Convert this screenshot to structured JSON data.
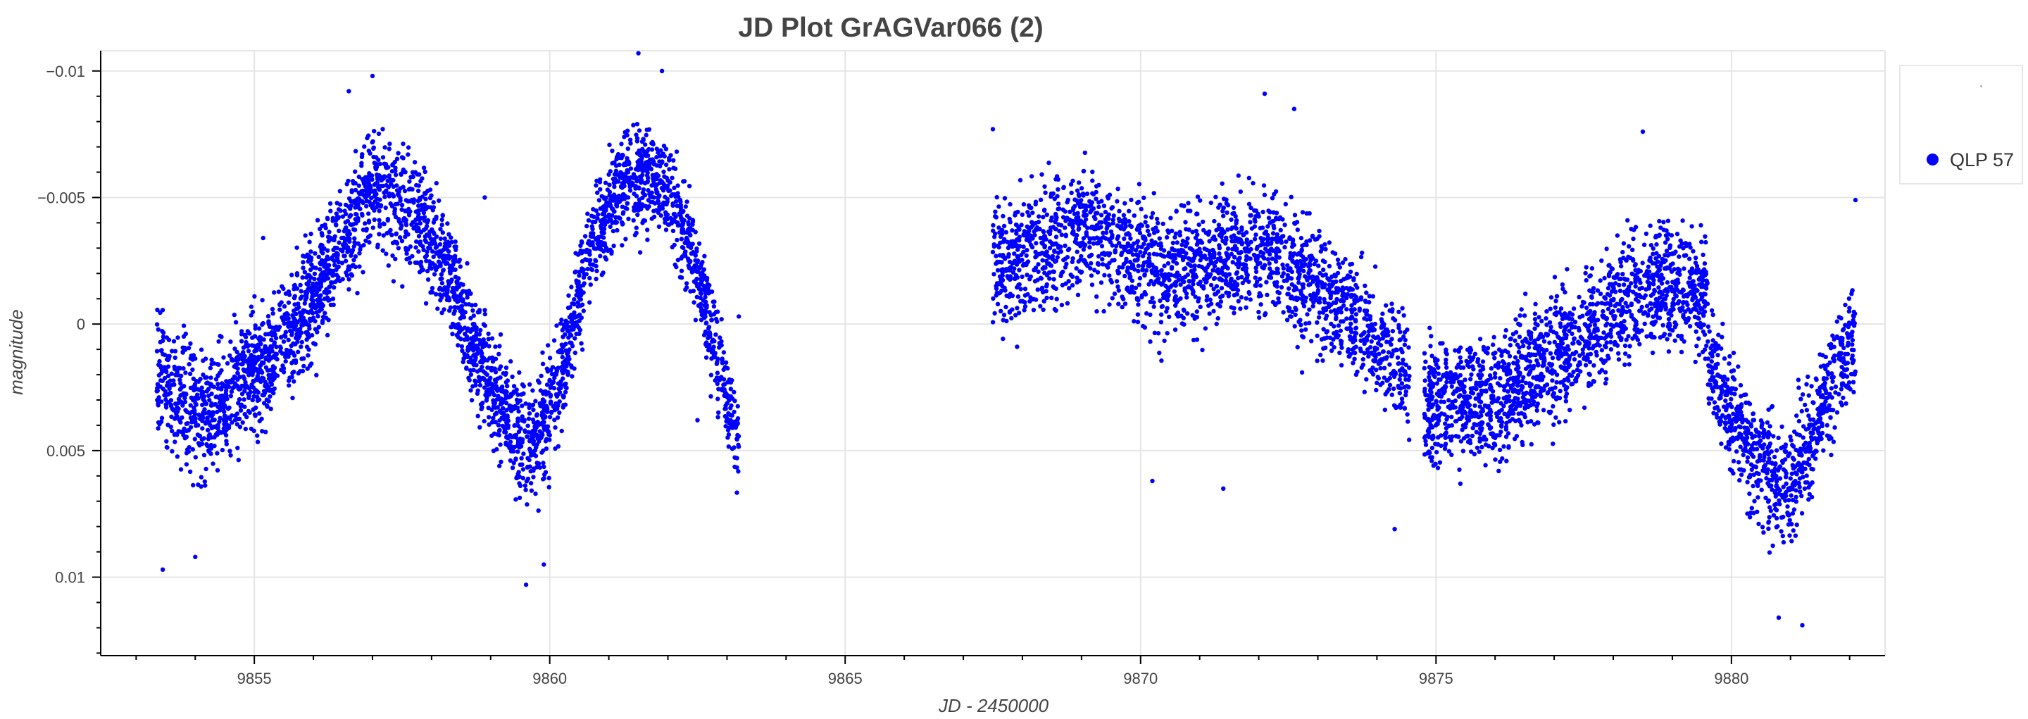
{
  "chart_data": {
    "type": "scatter",
    "title": "JD Plot GrAGVar066 (2)",
    "xlabel": "JD - 2450000",
    "ylabel": "magnitude",
    "xlim": [
      9852.4,
      9882.6
    ],
    "ylim": [
      0.0131,
      -0.0108
    ],
    "y_inverted": true,
    "x_ticks": [
      9855,
      9860,
      9865,
      9870,
      9875,
      9880
    ],
    "x_tick_labels": [
      "9855",
      "9860",
      "9865",
      "9870",
      "9875",
      "9880"
    ],
    "y_ticks": [
      -0.01,
      -0.005,
      0,
      0.005,
      0.01
    ],
    "y_tick_labels": [
      "−0.01",
      "−0.005",
      "0",
      "0.005",
      "0.01"
    ],
    "grid": true,
    "legend_position": "right",
    "series": [
      {
        "name": "QLP 57",
        "color": "#0000ff",
        "marker": "circle",
        "segments": [
          {
            "x_start": 9853.35,
            "x_end": 9855.1,
            "approx_count": 620,
            "trend_x": [
              9853.35,
              9854.2,
              9855.1
            ],
            "trend_y": [
              0.002,
              0.0036,
              0.0018
            ],
            "scatter": 0.0024
          },
          {
            "x_start": 9855.1,
            "x_end": 9858.4,
            "approx_count": 1150,
            "trend_x": [
              9855.1,
              9856.0,
              9857.0,
              9857.8,
              9858.4
            ],
            "trend_y": [
              0.0018,
              -0.001,
              -0.0055,
              -0.004,
              -0.0015
            ],
            "scatter": 0.0022
          },
          {
            "x_start": 9858.4,
            "x_end": 9860.6,
            "approx_count": 800,
            "trend_x": [
              9858.4,
              9859.2,
              9859.7,
              9860.2,
              9860.6
            ],
            "trend_y": [
              -0.001,
              0.0035,
              0.005,
              0.002,
              -0.002
            ],
            "scatter": 0.0022
          },
          {
            "x_start": 9860.6,
            "x_end": 9863.2,
            "approx_count": 850,
            "trend_x": [
              9860.6,
              9861.3,
              9861.9,
              9862.4,
              9862.8,
              9863.2
            ],
            "trend_y": [
              -0.0025,
              -0.0058,
              -0.0055,
              -0.003,
              0.001,
              0.0048
            ],
            "scatter": 0.0019
          },
          {
            "x_start": 9867.5,
            "x_end": 9874.55,
            "approx_count": 2050,
            "trend_x": [
              9867.5,
              9869.0,
              9870.5,
              9872.0,
              9873.5,
              9874.55
            ],
            "trend_y": [
              -0.0022,
              -0.0038,
              -0.0018,
              -0.003,
              -0.0005,
              0.002
            ],
            "scatter": 0.0024
          },
          {
            "x_start": 9874.8,
            "x_end": 9879.6,
            "approx_count": 1600,
            "trend_x": [
              9874.8,
              9876.0,
              9877.5,
              9878.7,
              9879.6
            ],
            "trend_y": [
              0.003,
              0.0032,
              0.0005,
              -0.0018,
              -0.001
            ],
            "scatter": 0.0024
          },
          {
            "x_start": 9879.6,
            "x_end": 9882.1,
            "approx_count": 780,
            "trend_x": [
              9879.6,
              9880.4,
              9881.0,
              9881.6,
              9882.1
            ],
            "trend_y": [
              0.0015,
              0.0055,
              0.0065,
              0.003,
              0.0005
            ],
            "scatter": 0.0023
          }
        ],
        "sample_points": [
          [
            9853.45,
            0.0097
          ],
          [
            9854.0,
            0.0092
          ],
          [
            9855.15,
            -0.0034
          ],
          [
            9856.6,
            -0.0092
          ],
          [
            9857.0,
            -0.0098
          ],
          [
            9858.9,
            -0.005
          ],
          [
            9859.6,
            0.0103
          ],
          [
            9859.9,
            0.0095
          ],
          [
            9861.5,
            -0.0107
          ],
          [
            9861.9,
            -0.01
          ],
          [
            9862.5,
            0.0038
          ],
          [
            9863.2,
            -0.0003
          ],
          [
            9867.5,
            -0.0077
          ],
          [
            9870.2,
            0.0062
          ],
          [
            9871.4,
            0.0065
          ],
          [
            9872.1,
            -0.0091
          ],
          [
            9872.6,
            -0.0085
          ],
          [
            9874.3,
            0.0081
          ],
          [
            9878.5,
            -0.0076
          ],
          [
            9880.8,
            0.0116
          ],
          [
            9881.2,
            0.0119
          ],
          [
            9882.1,
            -0.0049
          ]
        ]
      }
    ]
  }
}
